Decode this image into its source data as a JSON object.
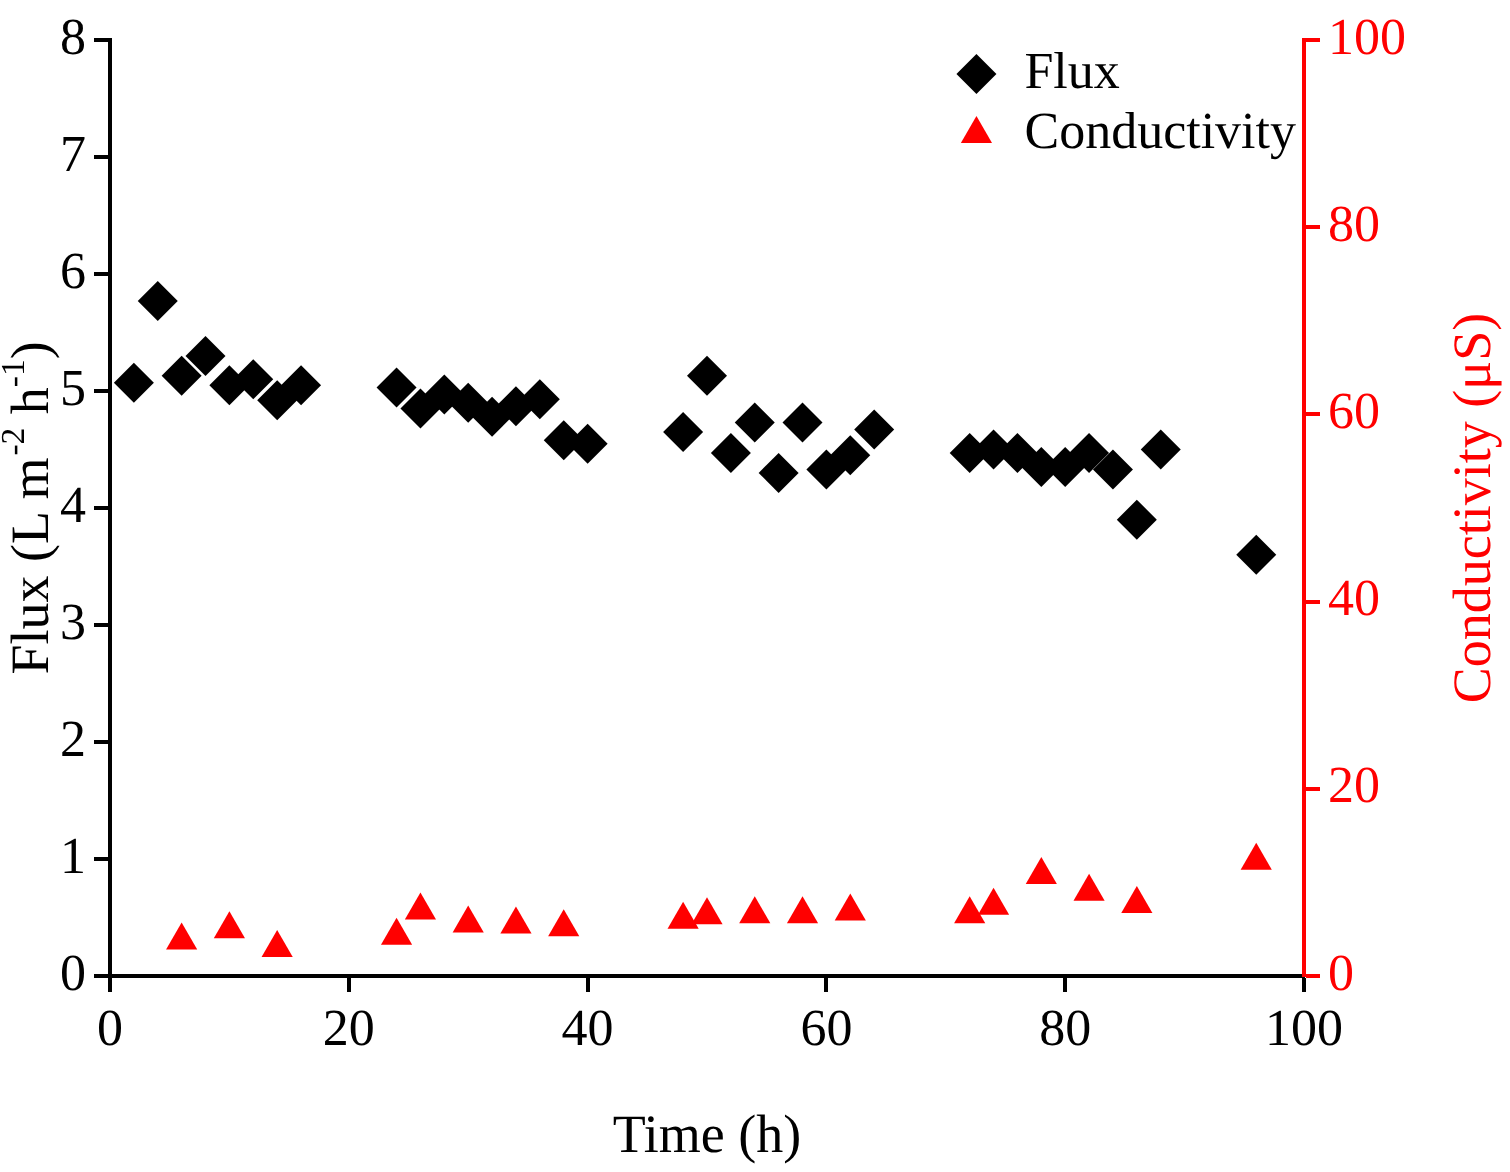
{
  "chart_data": {
    "type": "scatter",
    "xlabel": "Time (h)",
    "ylabel": "Flux (L m$^{-2}$ h$^{-1}$)",
    "y2label": "Conductivity (μS)",
    "xlim": [
      0,
      100
    ],
    "xticks": [
      0,
      20,
      40,
      60,
      80,
      100
    ],
    "ylim": [
      0,
      8
    ],
    "yticks": [
      0,
      1,
      2,
      3,
      4,
      5,
      6,
      7,
      8
    ],
    "y2lim": [
      0,
      100
    ],
    "y2ticks": [
      0,
      20,
      40,
      60,
      80,
      100
    ],
    "grid": false,
    "legend": "top right",
    "series": [
      {
        "name": "Flux",
        "color": "#000000",
        "marker": "diamond",
        "x": [
          2,
          4,
          6,
          8,
          10,
          12,
          14,
          16,
          24,
          26,
          28,
          30,
          32,
          34,
          36,
          38,
          40,
          48,
          50,
          52,
          54,
          56,
          58,
          60,
          62,
          64,
          72,
          74,
          76,
          78,
          80,
          82,
          84,
          86,
          88,
          96
        ],
        "values": [
          5.07,
          5.77,
          5.13,
          5.3,
          5.05,
          5.1,
          4.92,
          5.05,
          5.03,
          4.85,
          4.97,
          4.9,
          4.78,
          4.87,
          4.93,
          4.58,
          4.55,
          4.65,
          5.13,
          4.47,
          4.73,
          4.3,
          4.73,
          4.33,
          4.45,
          4.67,
          4.47,
          4.5,
          4.47,
          4.35,
          4.35,
          4.47,
          4.33,
          3.9,
          4.5,
          3.6
        ]
      },
      {
        "name": "Conductivity",
        "color": "#ff0000",
        "marker": "triangle",
        "axis": "y2",
        "x": [
          6,
          10,
          14,
          24,
          26,
          30,
          34,
          38,
          48,
          50,
          54,
          58,
          62,
          72,
          74,
          78,
          82,
          86,
          96
        ],
        "values": [
          3.8,
          5.0,
          3.0,
          4.3,
          7.0,
          5.6,
          5.5,
          5.2,
          6.0,
          6.5,
          6.6,
          6.6,
          6.9,
          6.6,
          7.5,
          10.8,
          9.0,
          7.7,
          12.3
        ]
      }
    ]
  }
}
